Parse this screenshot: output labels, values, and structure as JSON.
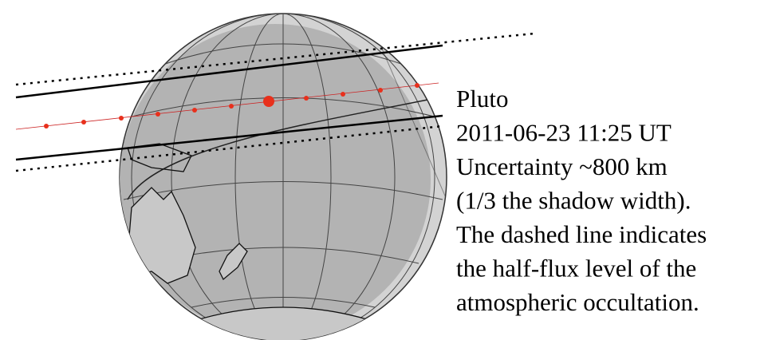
{
  "caption": {
    "lines": [
      "Pluto",
      "2011-06-23 11:25 UT",
      "Uncertainty ~800 km",
      "(1/3 the shadow width).",
      "The dashed line indicates",
      "the half-flux level of the",
      "atmospheric occultation."
    ]
  }
}
